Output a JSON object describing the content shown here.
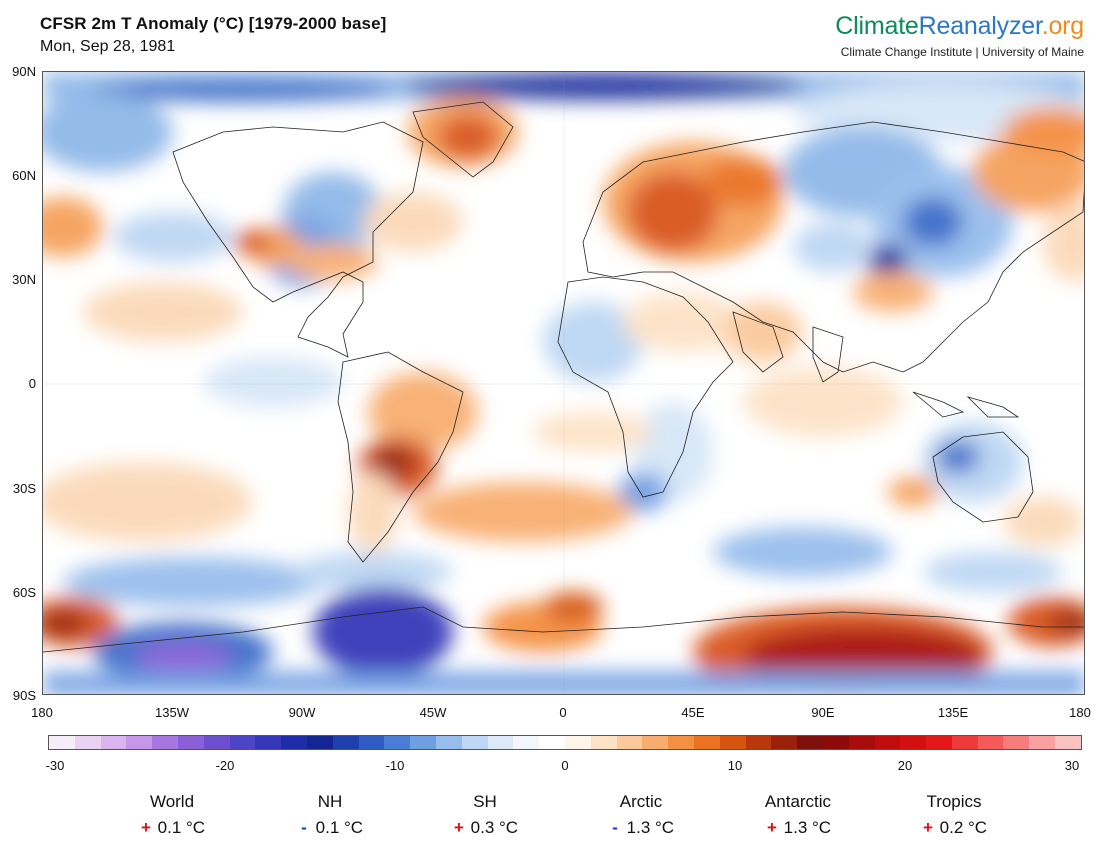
{
  "header": {
    "title": "CFSR 2m T Anomaly (°C) [1979-2000 base]",
    "date": "Mon, Sep 28, 1981"
  },
  "brand": {
    "name_part1": "Climate",
    "name_part2": "Reanalyzer",
    "name_part3": ".org",
    "subtitle": "Climate Change Institute | University of Maine"
  },
  "map": {
    "lat_labels": [
      "90N",
      "60N",
      "30N",
      "0",
      "30S",
      "60S",
      "90S"
    ],
    "lon_labels": [
      "180",
      "135W",
      "90W",
      "45W",
      "0",
      "45E",
      "90E",
      "135E",
      "180"
    ],
    "colors": {
      "ocean_base": "#ffffff",
      "warm_light": "#fbd9b8",
      "warm": "#f5a05a",
      "warm_strong": "#d9551a",
      "hot": "#a80d0d",
      "cool_light": "#d6e6f7",
      "cool": "#8fb8e8",
      "cool_strong": "#3b6dc9",
      "cold": "#1b2f9c",
      "very_cold": "#b48ee8",
      "land_lines": "#222222"
    }
  },
  "colorbar": {
    "tick_labels": [
      "-30",
      "-20",
      "-10",
      "0",
      "10",
      "20",
      "30"
    ],
    "colors": [
      "#f5eef8",
      "#e9d2f2",
      "#dab4ee",
      "#c596ea",
      "#a777e0",
      "#8a5fd8",
      "#6b4fcf",
      "#4d44c6",
      "#3438b8",
      "#1f2ca8",
      "#142596",
      "#1f3fae",
      "#2f5cc4",
      "#4a7ed6",
      "#6f9ee2",
      "#97bdec",
      "#bcd6f3",
      "#dce9f8",
      "#f3f7fc",
      "#ffffff",
      "#fff4ea",
      "#fde2c6",
      "#fbc99b",
      "#f8ad6f",
      "#f48f43",
      "#ea7220",
      "#d6540f",
      "#b8380b",
      "#9a200a",
      "#7e0f0c",
      "#8e0a0a",
      "#a80d0d",
      "#c00c0c",
      "#d30f0f",
      "#e41818",
      "#ee3a3a",
      "#f45a5a",
      "#f77d7d",
      "#f9a0a0",
      "#fbc2c2"
    ]
  },
  "regions": [
    {
      "name": "World",
      "sign": "+",
      "value": "0.1 °C"
    },
    {
      "name": "NH",
      "sign": "-",
      "value": "0.1 °C"
    },
    {
      "name": "SH",
      "sign": "+",
      "value": "0.3 °C"
    },
    {
      "name": "Arctic",
      "sign": "-",
      "value": "1.3 °C"
    },
    {
      "name": "Antarctic",
      "sign": "+",
      "value": "1.3 °C"
    },
    {
      "name": "Tropics",
      "sign": "+",
      "value": "0.2 °C"
    }
  ]
}
